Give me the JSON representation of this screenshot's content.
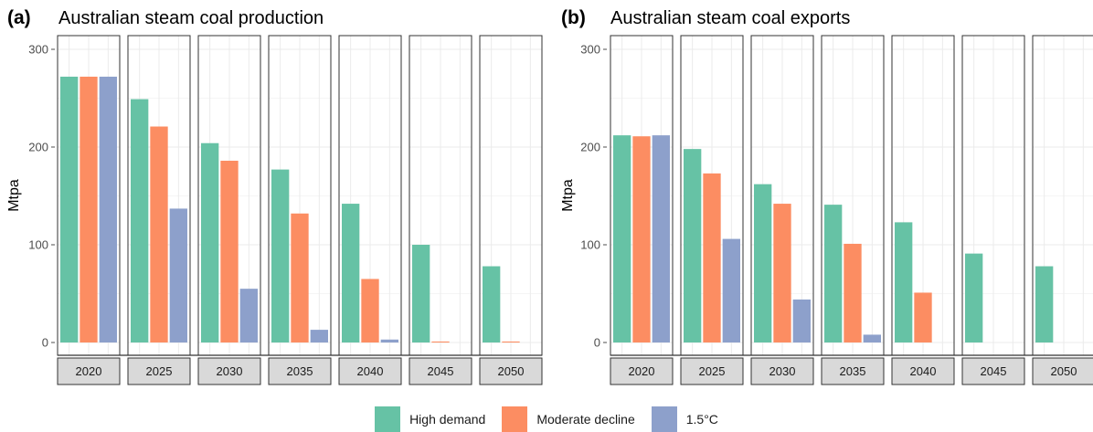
{
  "chart_data": [
    {
      "type": "bar",
      "tag": "(a)",
      "title": "Australian steam coal production",
      "ylabel": "Mtpa",
      "ylim": [
        0,
        315
      ],
      "yticks": [
        0,
        100,
        200,
        300
      ],
      "categories": [
        "2020",
        "2025",
        "2030",
        "2035",
        "2040",
        "2045",
        "2050"
      ],
      "series": [
        {
          "name": "High demand",
          "values": [
            272,
            249,
            204,
            177,
            142,
            100,
            78
          ]
        },
        {
          "name": "Moderate decline",
          "values": [
            272,
            221,
            186,
            132,
            65,
            1,
            1
          ]
        },
        {
          "name": "1.5°C",
          "values": [
            272,
            137,
            55,
            13,
            3,
            0,
            0
          ]
        }
      ]
    },
    {
      "type": "bar",
      "tag": "(b)",
      "title": "Australian steam coal exports",
      "ylabel": "Mtpa",
      "ylim": [
        0,
        315
      ],
      "yticks": [
        0,
        100,
        200,
        300
      ],
      "categories": [
        "2020",
        "2025",
        "2030",
        "2035",
        "2040",
        "2045",
        "2050"
      ],
      "series": [
        {
          "name": "High demand",
          "values": [
            212,
            198,
            162,
            141,
            123,
            91,
            78
          ]
        },
        {
          "name": "Moderate decline",
          "values": [
            211,
            173,
            142,
            101,
            51,
            0,
            0
          ]
        },
        {
          "name": "1.5°C",
          "values": [
            212,
            106,
            44,
            8,
            0,
            0,
            0
          ]
        }
      ]
    }
  ],
  "legend": {
    "placement": "bottom",
    "items": [
      {
        "label": "High demand",
        "color": "#66c2a5"
      },
      {
        "label": "Moderate decline",
        "color": "#fc8d62"
      },
      {
        "label": "1.5°C",
        "color": "#8da0cb"
      }
    ]
  },
  "colors": {
    "panel_border": "#333333",
    "strip_fill": "#d9d9d9",
    "grid": "#ebebeb",
    "axis_text": "#4d4d4d"
  }
}
